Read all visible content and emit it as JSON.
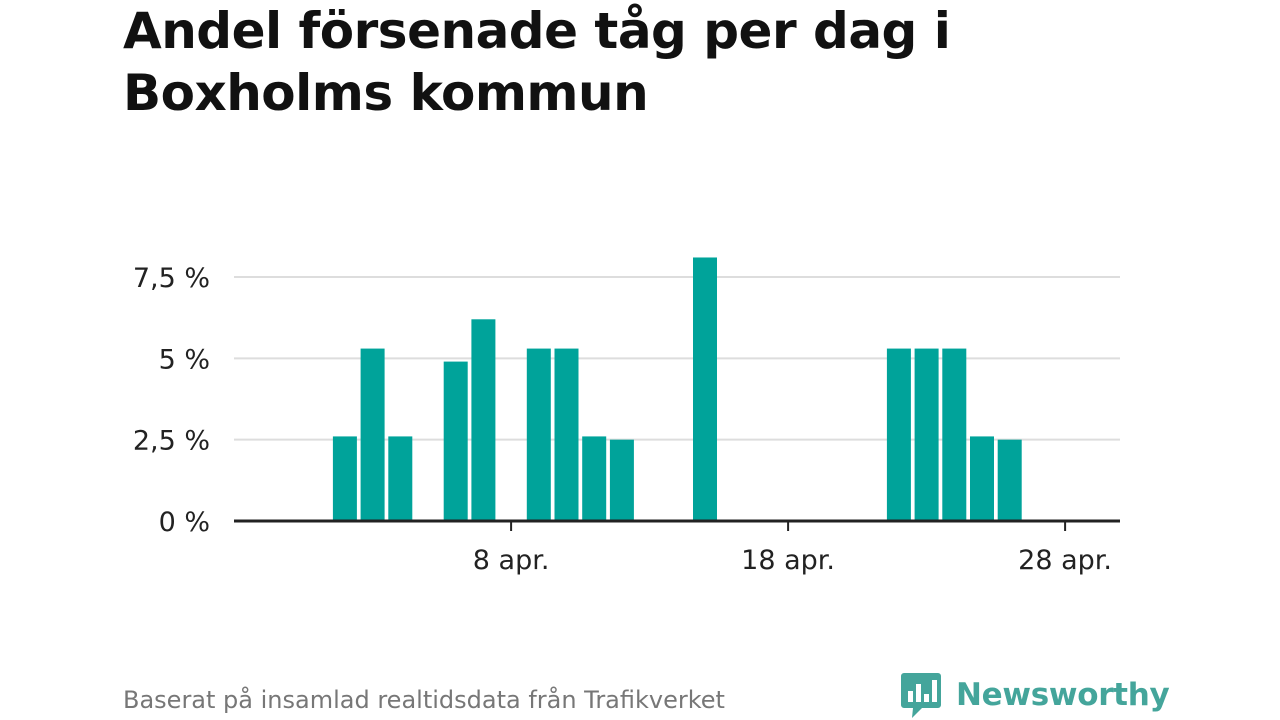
{
  "title": "Andel försenade tåg per dag i Boxholms kommun",
  "source": "Baserat på insamlad realtidsdata från Trafikverket",
  "brand": {
    "name": "Newsworthy",
    "icon": "bar-chart-speech-bubble-icon",
    "color": "#44a59b"
  },
  "chart_data": {
    "type": "bar",
    "title": "Andel försenade tåg per dag i Boxholms kommun",
    "xlabel": "",
    "ylabel": "",
    "x": [
      "2024-03-31",
      "2024-04-01",
      "2024-04-02",
      "2024-04-03",
      "2024-04-04",
      "2024-04-05",
      "2024-04-06",
      "2024-04-07",
      "2024-04-08",
      "2024-04-09",
      "2024-04-10",
      "2024-04-11",
      "2024-04-12",
      "2024-04-13",
      "2024-04-14",
      "2024-04-15",
      "2024-04-16",
      "2024-04-17",
      "2024-04-18",
      "2024-04-19",
      "2024-04-20",
      "2024-04-21",
      "2024-04-22",
      "2024-04-23",
      "2024-04-24",
      "2024-04-25",
      "2024-04-26",
      "2024-04-27",
      "2024-04-28",
      "2024-04-29",
      "2024-04-30"
    ],
    "values": [
      0,
      0,
      2.6,
      5.3,
      2.6,
      0,
      4.9,
      6.2,
      0,
      5.3,
      5.3,
      2.6,
      2.5,
      0,
      0,
      8.1,
      0,
      0,
      0,
      0,
      0,
      0,
      5.3,
      5.3,
      5.3,
      2.6,
      2.5,
      0,
      0,
      0,
      0
    ],
    "ylim": [
      0,
      8.1
    ],
    "yticks": [
      0,
      2.5,
      5,
      7.5
    ],
    "ytick_labels": [
      "0 %",
      "2,5 %",
      "5 %",
      "7,5 %"
    ],
    "xticks": [
      "2024-04-08",
      "2024-04-18",
      "2024-04-28"
    ],
    "xtick_labels": [
      "8 apr.",
      "18 apr.",
      "28 apr."
    ],
    "grid": true,
    "legend": "none",
    "colors": {
      "bar": "#00a39a",
      "grid": "#dddddd",
      "axis": "#222222"
    }
  }
}
